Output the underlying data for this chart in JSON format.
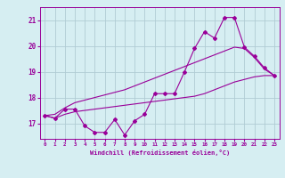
{
  "xlabel": "Windchill (Refroidissement éolien,°C)",
  "x": [
    0,
    1,
    2,
    3,
    4,
    5,
    6,
    7,
    8,
    9,
    10,
    11,
    12,
    13,
    14,
    15,
    16,
    17,
    18,
    19,
    20,
    21,
    22,
    23
  ],
  "y_main": [
    17.3,
    17.2,
    17.55,
    17.55,
    16.9,
    16.65,
    16.65,
    17.15,
    16.55,
    17.1,
    17.35,
    18.15,
    18.15,
    18.15,
    19.0,
    19.9,
    20.55,
    20.3,
    21.1,
    21.1,
    19.95,
    19.6,
    19.15,
    18.85
  ],
  "y_upper": [
    17.3,
    17.35,
    17.6,
    17.8,
    17.9,
    18.0,
    18.1,
    18.2,
    18.3,
    18.45,
    18.6,
    18.75,
    18.9,
    19.05,
    19.2,
    19.35,
    19.5,
    19.65,
    19.8,
    19.95,
    19.9,
    19.55,
    19.1,
    18.85
  ],
  "y_lower": [
    17.3,
    17.2,
    17.35,
    17.45,
    17.5,
    17.55,
    17.6,
    17.65,
    17.7,
    17.75,
    17.8,
    17.85,
    17.9,
    17.95,
    18.0,
    18.05,
    18.15,
    18.3,
    18.45,
    18.6,
    18.7,
    18.8,
    18.85,
    18.85
  ],
  "line_color": "#990099",
  "bg_color": "#d6eef2",
  "grid_color": "#b0ccd4",
  "ylim": [
    16.4,
    21.5
  ],
  "xlim": [
    -0.5,
    23.5
  ],
  "yticks": [
    17,
    18,
    19,
    20,
    21
  ],
  "xticks": [
    0,
    1,
    2,
    3,
    4,
    5,
    6,
    7,
    8,
    9,
    10,
    11,
    12,
    13,
    14,
    15,
    16,
    17,
    18,
    19,
    20,
    21,
    22,
    23
  ]
}
